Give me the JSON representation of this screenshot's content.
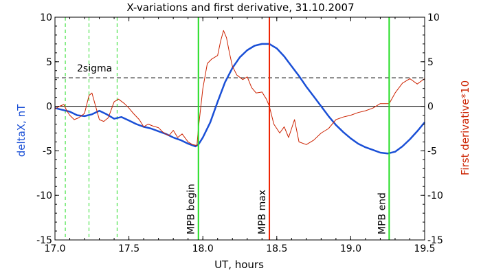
{
  "chart_data": {
    "type": "line",
    "title": "X-variations and first derivative, 31.10.2007",
    "xlabel": "UT, hours",
    "ylabel_left": "deltaX, nT",
    "ylabel_right": "First derivative*10",
    "xlim": [
      17.0,
      19.5
    ],
    "ylim": [
      -15,
      10
    ],
    "x_ticks": [
      "17.0",
      "17.5",
      "18.0",
      "18.5",
      "19.0",
      "19.5"
    ],
    "y_ticks_left": [
      "10",
      "5",
      "0",
      "-5",
      "-10",
      "-15"
    ],
    "y_ticks_right": [
      "10",
      "5",
      "0",
      "-5",
      "-10",
      "-15"
    ],
    "colors": {
      "deltaX": "#1a4fd6",
      "derivative": "#cc2200",
      "mpb": "#22dd22",
      "max": "#ee2200"
    },
    "sigma_label": "2sigma",
    "sigma_level": 3.2,
    "zero_level": 0,
    "candidate_lines": [
      17.07,
      17.23,
      17.42
    ],
    "markers": [
      {
        "x": 17.97,
        "label": "MPB begin",
        "color": "#22dd22"
      },
      {
        "x": 18.45,
        "label": "MPB max",
        "color": "#ee2200"
      },
      {
        "x": 19.26,
        "label": "MPB end",
        "color": "#22dd22"
      }
    ],
    "series": [
      {
        "key": "deltaX",
        "x": [
          17.0,
          17.05,
          17.1,
          17.15,
          17.2,
          17.25,
          17.3,
          17.35,
          17.4,
          17.45,
          17.5,
          17.55,
          17.6,
          17.65,
          17.7,
          17.75,
          17.8,
          17.85,
          17.9,
          17.95,
          17.97,
          18.0,
          18.05,
          18.1,
          18.15,
          18.2,
          18.25,
          18.3,
          18.35,
          18.4,
          18.45,
          18.5,
          18.55,
          18.6,
          18.65,
          18.7,
          18.75,
          18.8,
          18.85,
          18.9,
          18.95,
          19.0,
          19.05,
          19.1,
          19.15,
          19.2,
          19.25,
          19.3,
          19.35,
          19.4,
          19.45,
          19.5
        ],
        "values": [
          -0.2,
          -0.4,
          -0.6,
          -1.0,
          -1.1,
          -0.9,
          -0.5,
          -0.9,
          -1.4,
          -1.2,
          -1.6,
          -2.0,
          -2.3,
          -2.5,
          -2.8,
          -3.1,
          -3.5,
          -3.8,
          -4.2,
          -4.5,
          -4.3,
          -3.5,
          -1.8,
          0.5,
          2.7,
          4.3,
          5.5,
          6.3,
          6.8,
          7.0,
          7.0,
          6.5,
          5.6,
          4.5,
          3.4,
          2.2,
          1.1,
          0.0,
          -1.1,
          -2.1,
          -2.9,
          -3.6,
          -4.2,
          -4.6,
          -4.9,
          -5.2,
          -5.3,
          -5.1,
          -4.5,
          -3.7,
          -2.8,
          -1.8
        ]
      },
      {
        "key": "derivative",
        "x": [
          17.0,
          17.03,
          17.06,
          17.08,
          17.1,
          17.13,
          17.16,
          17.2,
          17.23,
          17.25,
          17.27,
          17.3,
          17.33,
          17.36,
          17.4,
          17.43,
          17.47,
          17.5,
          17.53,
          17.57,
          17.6,
          17.63,
          17.66,
          17.7,
          17.73,
          17.77,
          17.8,
          17.83,
          17.86,
          17.9,
          17.93,
          17.96,
          17.97,
          18.0,
          18.03,
          18.06,
          18.1,
          18.12,
          18.14,
          18.16,
          18.18,
          18.2,
          18.23,
          18.27,
          18.3,
          18.33,
          18.36,
          18.4,
          18.43,
          18.45,
          18.48,
          18.52,
          18.55,
          18.58,
          18.62,
          18.65,
          18.7,
          18.75,
          18.8,
          18.85,
          18.9,
          18.95,
          19.0,
          19.05,
          19.1,
          19.15,
          19.2,
          19.26,
          19.3,
          19.35,
          19.4,
          19.45,
          19.5
        ],
        "values": [
          -0.3,
          0.0,
          0.2,
          -0.5,
          -1.0,
          -1.5,
          -1.3,
          -0.8,
          1.2,
          1.5,
          0.3,
          -1.5,
          -1.7,
          -1.3,
          0.5,
          0.8,
          0.3,
          -0.2,
          -0.8,
          -1.5,
          -2.3,
          -2.0,
          -2.2,
          -2.4,
          -2.9,
          -3.3,
          -2.7,
          -3.5,
          -3.1,
          -4.0,
          -4.3,
          -4.4,
          -2.5,
          2.0,
          4.8,
          5.3,
          5.7,
          7.3,
          8.5,
          7.7,
          6.0,
          4.5,
          3.5,
          3.0,
          3.3,
          2.1,
          1.5,
          1.6,
          0.8,
          0.0,
          -2.0,
          -3.0,
          -2.3,
          -3.5,
          -1.5,
          -4.0,
          -4.3,
          -3.8,
          -3.0,
          -2.5,
          -1.5,
          -1.2,
          -1.0,
          -0.7,
          -0.5,
          -0.2,
          0.3,
          0.3,
          1.5,
          2.6,
          3.1,
          2.5,
          3.1
        ]
      }
    ]
  }
}
